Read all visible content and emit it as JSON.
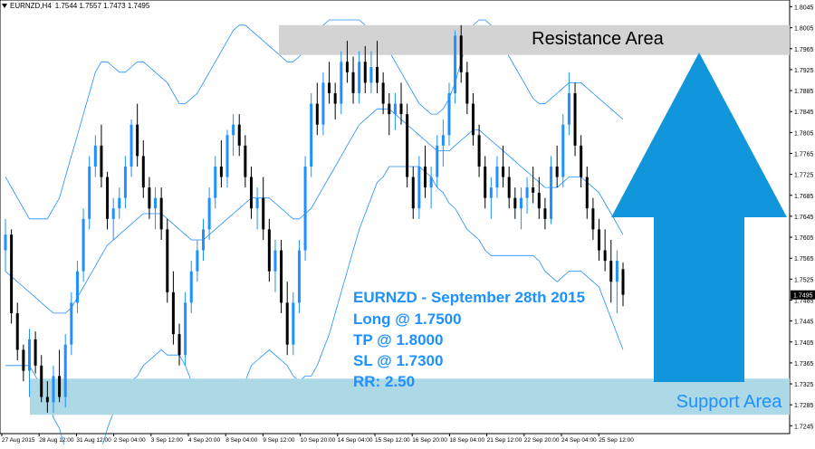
{
  "header": {
    "symbol": "EURNZD,H4",
    "ohlc": "1.7544 1.7557 1.7473 1.7495"
  },
  "zones": {
    "resistance_label": "Resistance Area",
    "support_label": "Support Area",
    "resistance_range": [
      1.7953,
      1.801
    ],
    "support_range": [
      1.7266,
      1.7335
    ]
  },
  "trade": {
    "title": "EURNZD - September 28th 2015",
    "long": "Long @ 1.7500",
    "tp": "TP @ 1.8000",
    "sl": "SL @ 1.7300",
    "rr": "RR: 2.50"
  },
  "colors": {
    "bull": "#1e90ff",
    "bear": "#000000",
    "bands": "#1e90ff",
    "resistance_fill": "#d3d3d3",
    "support_fill": "#add8e6",
    "arrow": "#1296db",
    "trade_text": "#1e90ff",
    "current_price_bg": "#000000"
  },
  "chart_data": {
    "type": "candlestick",
    "ylim": [
      1.723,
      1.8058
    ],
    "price_ticks": [
      "1.8045",
      "1.8005",
      "1.7965",
      "1.7925",
      "1.7885",
      "1.7845",
      "1.7805",
      "1.7765",
      "1.7725",
      "1.7685",
      "1.7645",
      "1.7605",
      "1.7565",
      "1.7525",
      "1.7485",
      "1.7445",
      "1.7405",
      "1.7365",
      "1.7325",
      "1.7285",
      "1.7245"
    ],
    "current_price": "1.7495",
    "time_ticks": [
      "27 Aug 2015",
      "28 Aug 12:00",
      "31 Aug 12:00",
      "2 Sep 04:00",
      "3 Sep 12:00",
      "4 Sep 20:00",
      "8 Sep 04:00",
      "9 Sep 12:00",
      "10 Sep 20:00",
      "14 Sep 04:00",
      "15 Sep 12:00",
      "16 Sep 20:00",
      "18 Sep 04:00",
      "21 Sep 12:00",
      "22 Sep 20:00",
      "24 Sep 04:00",
      "25 Sep 12:00"
    ],
    "candles": [
      [
        1.758,
        1.764,
        1.754,
        1.761
      ],
      [
        1.761,
        1.762,
        1.744,
        1.746
      ],
      [
        1.746,
        1.748,
        1.737,
        1.739
      ],
      [
        1.739,
        1.74,
        1.733,
        1.735
      ],
      [
        1.735,
        1.743,
        1.73,
        1.741
      ],
      [
        1.741,
        1.7425,
        1.7345,
        1.736
      ],
      [
        1.736,
        1.738,
        1.729,
        1.73
      ],
      [
        1.73,
        1.733,
        1.727,
        1.729
      ],
      [
        1.729,
        1.736,
        1.727,
        1.734
      ],
      [
        1.734,
        1.739,
        1.729,
        1.73
      ],
      [
        1.73,
        1.742,
        1.728,
        1.74
      ],
      [
        1.74,
        1.75,
        1.738,
        1.748
      ],
      [
        1.748,
        1.756,
        1.746,
        1.754
      ],
      [
        1.754,
        1.766,
        1.752,
        1.764
      ],
      [
        1.764,
        1.776,
        1.762,
        1.774
      ],
      [
        1.774,
        1.78,
        1.772,
        1.778
      ],
      [
        1.778,
        1.782,
        1.77,
        1.772
      ],
      [
        1.772,
        1.773,
        1.762,
        1.764
      ],
      [
        1.764,
        1.768,
        1.76,
        1.766
      ],
      [
        1.766,
        1.77,
        1.764,
        1.768
      ],
      [
        1.768,
        1.776,
        1.766,
        1.774
      ],
      [
        1.774,
        1.783,
        1.772,
        1.782
      ],
      [
        1.782,
        1.786,
        1.774,
        1.776
      ],
      [
        1.776,
        1.779,
        1.768,
        1.77
      ],
      [
        1.77,
        1.772,
        1.764,
        1.766
      ],
      [
        1.766,
        1.77,
        1.762,
        1.768
      ],
      [
        1.768,
        1.77,
        1.76,
        1.762
      ],
      [
        1.762,
        1.764,
        1.748,
        1.75
      ],
      [
        1.75,
        1.754,
        1.74,
        1.742
      ],
      [
        1.742,
        1.744,
        1.736,
        1.738
      ],
      [
        1.738,
        1.75,
        1.736,
        1.748
      ],
      [
        1.748,
        1.756,
        1.746,
        1.754
      ],
      [
        1.754,
        1.76,
        1.752,
        1.758
      ],
      [
        1.758,
        1.764,
        1.756,
        1.762
      ],
      [
        1.762,
        1.77,
        1.76,
        1.768
      ],
      [
        1.768,
        1.776,
        1.766,
        1.774
      ],
      [
        1.774,
        1.779,
        1.77,
        1.772
      ],
      [
        1.772,
        1.781,
        1.77,
        1.78
      ],
      [
        1.78,
        1.784,
        1.776,
        1.782
      ],
      [
        1.782,
        1.784,
        1.776,
        1.778
      ],
      [
        1.778,
        1.78,
        1.77,
        1.772
      ],
      [
        1.772,
        1.774,
        1.764,
        1.766
      ],
      [
        1.766,
        1.77,
        1.762,
        1.768
      ],
      [
        1.768,
        1.772,
        1.76,
        1.762
      ],
      [
        1.762,
        1.764,
        1.752,
        1.754
      ],
      [
        1.754,
        1.76,
        1.75,
        1.758
      ],
      [
        1.758,
        1.76,
        1.746,
        1.748
      ],
      [
        1.748,
        1.752,
        1.738,
        1.74
      ],
      [
        1.74,
        1.75,
        1.738,
        1.748
      ],
      [
        1.748,
        1.76,
        1.746,
        1.758
      ],
      [
        1.758,
        1.776,
        1.756,
        1.774
      ],
      [
        1.774,
        1.788,
        1.772,
        1.786
      ],
      [
        1.786,
        1.79,
        1.78,
        1.782
      ],
      [
        1.782,
        1.792,
        1.78,
        1.79
      ],
      [
        1.79,
        1.794,
        1.786,
        1.788
      ],
      [
        1.788,
        1.79,
        1.783,
        1.786
      ],
      [
        1.786,
        1.796,
        1.784,
        1.794
      ],
      [
        1.794,
        1.798,
        1.79,
        1.792
      ],
      [
        1.792,
        1.795,
        1.786,
        1.788
      ],
      [
        1.788,
        1.796,
        1.786,
        1.794
      ],
      [
        1.794,
        1.797,
        1.788,
        1.79
      ],
      [
        1.79,
        1.796,
        1.788,
        1.793
      ],
      [
        1.793,
        1.798,
        1.788,
        1.79
      ],
      [
        1.79,
        1.792,
        1.784,
        1.786
      ],
      [
        1.786,
        1.788,
        1.78,
        1.784
      ],
      [
        1.784,
        1.788,
        1.781,
        1.786
      ],
      [
        1.786,
        1.79,
        1.782,
        1.784
      ],
      [
        1.784,
        1.786,
        1.77,
        1.772
      ],
      [
        1.772,
        1.774,
        1.764,
        1.766
      ],
      [
        1.766,
        1.776,
        1.764,
        1.774
      ],
      [
        1.774,
        1.778,
        1.768,
        1.77
      ],
      [
        1.77,
        1.774,
        1.766,
        1.772
      ],
      [
        1.772,
        1.78,
        1.77,
        1.778
      ],
      [
        1.778,
        1.783,
        1.774,
        1.78
      ],
      [
        1.78,
        1.79,
        1.778,
        1.788
      ],
      [
        1.788,
        1.8,
        1.786,
        1.799
      ],
      [
        1.799,
        1.801,
        1.79,
        1.792
      ],
      [
        1.792,
        1.794,
        1.784,
        1.786
      ],
      [
        1.786,
        1.788,
        1.778,
        1.78
      ],
      [
        1.78,
        1.782,
        1.772,
        1.774
      ],
      [
        1.774,
        1.776,
        1.766,
        1.768
      ],
      [
        1.768,
        1.772,
        1.764,
        1.77
      ],
      [
        1.77,
        1.776,
        1.768,
        1.774
      ],
      [
        1.774,
        1.778,
        1.77,
        1.772
      ],
      [
        1.772,
        1.774,
        1.766,
        1.768
      ],
      [
        1.768,
        1.77,
        1.764,
        1.766
      ],
      [
        1.766,
        1.77,
        1.762,
        1.768
      ],
      [
        1.768,
        1.772,
        1.765,
        1.77
      ],
      [
        1.77,
        1.774,
        1.767,
        1.769
      ],
      [
        1.769,
        1.772,
        1.764,
        1.766
      ],
      [
        1.766,
        1.768,
        1.762,
        1.764
      ],
      [
        1.764,
        1.776,
        1.763,
        1.774
      ],
      [
        1.774,
        1.778,
        1.77,
        1.772
      ],
      [
        1.772,
        1.784,
        1.77,
        1.782
      ],
      [
        1.782,
        1.792,
        1.78,
        1.788
      ],
      [
        1.788,
        1.79,
        1.776,
        1.778
      ],
      [
        1.778,
        1.78,
        1.77,
        1.772
      ],
      [
        1.772,
        1.774,
        1.764,
        1.766
      ],
      [
        1.766,
        1.768,
        1.76,
        1.762
      ],
      [
        1.762,
        1.764,
        1.756,
        1.758
      ],
      [
        1.758,
        1.762,
        1.754,
        1.756
      ],
      [
        1.756,
        1.76,
        1.748,
        1.752
      ],
      [
        1.752,
        1.758,
        1.746,
        1.756
      ],
      [
        1.7544,
        1.7557,
        1.7473,
        1.7495
      ]
    ],
    "bands": {
      "upper": [
        1.772,
        1.77,
        1.768,
        1.766,
        1.764,
        1.764,
        1.764,
        1.764,
        1.766,
        1.768,
        1.772,
        1.776,
        1.78,
        1.784,
        1.788,
        1.792,
        1.794,
        1.794,
        1.793,
        1.792,
        1.792,
        1.793,
        1.794,
        1.794,
        1.793,
        1.792,
        1.791,
        1.79,
        1.788,
        1.786,
        1.786,
        1.787,
        1.788,
        1.79,
        1.792,
        1.794,
        1.796,
        1.798,
        1.8,
        1.801,
        1.801,
        1.8,
        1.799,
        1.798,
        1.797,
        1.796,
        1.795,
        1.794,
        1.794,
        1.795,
        1.796,
        1.798,
        1.8,
        1.801,
        1.802,
        1.802,
        1.802,
        1.802,
        1.802,
        1.802,
        1.801,
        1.8,
        1.799,
        1.798,
        1.796,
        1.794,
        1.792,
        1.79,
        1.788,
        1.786,
        1.785,
        1.784,
        1.784,
        1.785,
        1.787,
        1.79,
        1.794,
        1.798,
        1.801,
        1.802,
        1.802,
        1.801,
        1.799,
        1.797,
        1.795,
        1.793,
        1.791,
        1.789,
        1.787,
        1.786,
        1.786,
        1.787,
        1.788,
        1.789,
        1.79,
        1.79,
        1.79,
        1.789,
        1.788,
        1.787,
        1.786,
        1.785,
        1.784,
        1.783
      ],
      "middle": [
        1.754,
        1.753,
        1.752,
        1.751,
        1.75,
        1.749,
        1.748,
        1.747,
        1.746,
        1.746,
        1.746,
        1.747,
        1.749,
        1.751,
        1.753,
        1.755,
        1.757,
        1.759,
        1.76,
        1.761,
        1.762,
        1.763,
        1.764,
        1.765,
        1.765,
        1.765,
        1.765,
        1.764,
        1.763,
        1.762,
        1.761,
        1.76,
        1.76,
        1.76,
        1.761,
        1.762,
        1.763,
        1.764,
        1.765,
        1.766,
        1.767,
        1.768,
        1.768,
        1.768,
        1.768,
        1.767,
        1.766,
        1.765,
        1.764,
        1.764,
        1.765,
        1.766,
        1.768,
        1.77,
        1.772,
        1.774,
        1.776,
        1.778,
        1.78,
        1.782,
        1.783,
        1.784,
        1.785,
        1.785,
        1.785,
        1.784,
        1.783,
        1.782,
        1.781,
        1.78,
        1.779,
        1.778,
        1.777,
        1.777,
        1.777,
        1.778,
        1.779,
        1.78,
        1.781,
        1.781,
        1.78,
        1.779,
        1.778,
        1.777,
        1.776,
        1.775,
        1.774,
        1.773,
        1.772,
        1.771,
        1.77,
        1.77,
        1.77,
        1.771,
        1.772,
        1.772,
        1.772,
        1.771,
        1.77,
        1.769,
        1.767,
        1.765,
        1.763,
        1.761
      ],
      "lower": [
        1.736,
        1.736,
        1.736,
        1.736,
        1.736,
        1.734,
        1.732,
        1.73,
        1.726,
        1.724,
        1.72,
        1.718,
        1.718,
        1.718,
        1.718,
        1.718,
        1.72,
        1.724,
        1.727,
        1.73,
        1.732,
        1.733,
        1.734,
        1.736,
        1.737,
        1.738,
        1.739,
        1.738,
        1.738,
        1.738,
        1.736,
        1.733,
        1.732,
        1.73,
        1.73,
        1.73,
        1.73,
        1.73,
        1.73,
        1.731,
        1.733,
        1.736,
        1.737,
        1.738,
        1.739,
        1.738,
        1.737,
        1.736,
        1.734,
        1.733,
        1.734,
        1.734,
        1.736,
        1.739,
        1.742,
        1.746,
        1.75,
        1.754,
        1.758,
        1.762,
        1.765,
        1.768,
        1.771,
        1.772,
        1.774,
        1.774,
        1.774,
        1.774,
        1.774,
        1.774,
        1.773,
        1.772,
        1.77,
        1.769,
        1.767,
        1.766,
        1.764,
        1.762,
        1.761,
        1.76,
        1.758,
        1.757,
        1.757,
        1.757,
        1.757,
        1.757,
        1.757,
        1.757,
        1.757,
        1.756,
        1.754,
        1.753,
        1.752,
        1.753,
        1.754,
        1.754,
        1.754,
        1.753,
        1.752,
        1.751,
        1.748,
        1.745,
        1.742,
        1.739
      ]
    }
  }
}
